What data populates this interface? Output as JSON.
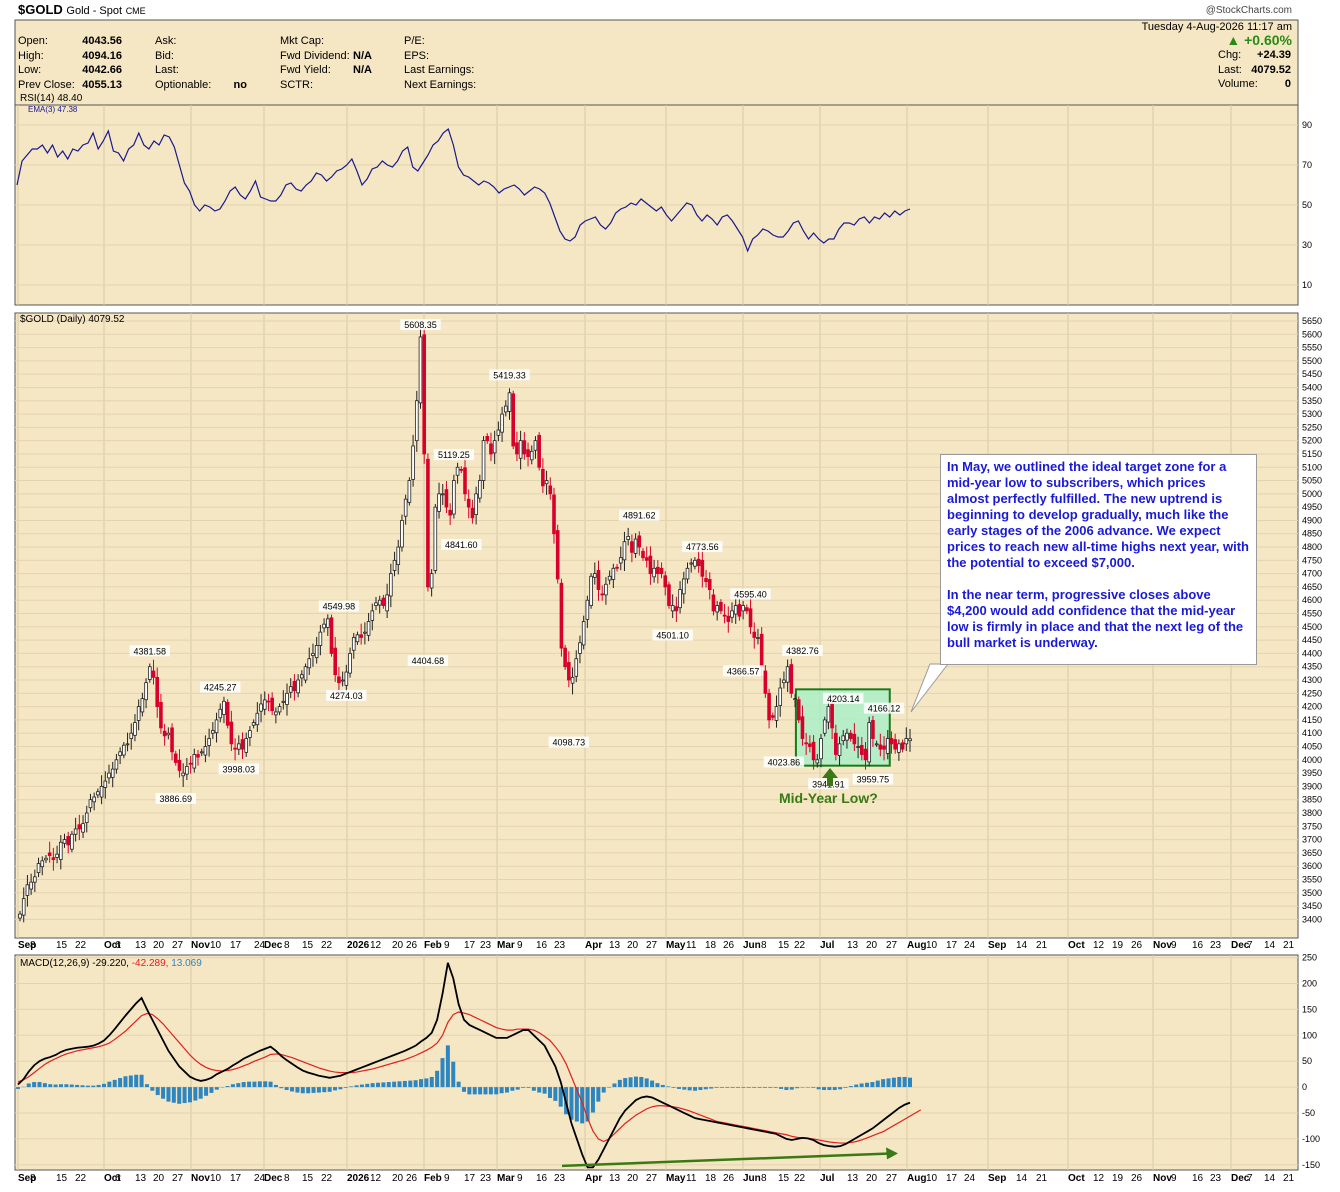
{
  "header": {
    "symbol": "$GOLD",
    "name": "Gold - Spot",
    "exchange": "CME",
    "date": "Tuesday  4-Aug-2026 11:17 am",
    "watermark": "@StockCharts.com",
    "pct_change": "▲ +0.60%",
    "fields_left": [
      {
        "label": "Open:",
        "value": "4043.56"
      },
      {
        "label": "High:",
        "value": "4094.16"
      },
      {
        "label": "Low:",
        "value": "4042.66"
      },
      {
        "label": "Prev Close:",
        "value": "4055.13"
      }
    ],
    "fields_mid1": [
      {
        "label": "Ask:",
        "value": ""
      },
      {
        "label": "Bid:",
        "value": ""
      },
      {
        "label": "Last:",
        "value": ""
      },
      {
        "label": "Optionable:",
        "value": "no"
      }
    ],
    "fields_mid2": [
      {
        "label": "Mkt Cap:",
        "value": ""
      },
      {
        "label": "Fwd Dividend:",
        "value": "N/A"
      },
      {
        "label": "Fwd Yield:",
        "value": "N/A"
      },
      {
        "label": "SCTR:",
        "value": ""
      }
    ],
    "fields_mid3": [
      {
        "label": "P/E:",
        "value": ""
      },
      {
        "label": "EPS:",
        "value": ""
      },
      {
        "label": "Last Earnings:",
        "value": ""
      },
      {
        "label": "Next Earnings:",
        "value": ""
      }
    ],
    "fields_right": [
      {
        "label": "Chg:",
        "value": "+24.39"
      },
      {
        "label": "Last:",
        "value": "4079.52"
      },
      {
        "label": "Volume:",
        "value": "0"
      }
    ]
  },
  "colors": {
    "panel_bg": "#f5e6c4",
    "up": "#222222",
    "down": "#d8002a",
    "rsi": "#1a1a8c",
    "macd": "#000000",
    "signal": "#e02020",
    "hist": "#2e86c1",
    "box_fill": "#a8f0c8",
    "box_edge": "#1a7a1a",
    "green": "#3a7a14"
  },
  "annotation": {
    "text": "In May, we outlined the ideal target zone for a mid-year low to subscribers, which prices almost perfectly fulfilled. The new uptrend is beginning to develop gradually, much like the early stages of the 2006 advance. We expect prices to reach new all-time highs next year, with the potential to exceed $7,000.\n\nIn the near term, progressive closes above $4,200 would add confidence that the mid-year low is firmly in place and that the next leg of the bull market is underway.",
    "mid_year_low": "Mid-Year Low?"
  },
  "chart_data": [
    {
      "type": "line",
      "title": "RSI(14) 48.40",
      "legend": [
        "RSI(14) 48.40",
        "EMA(3) 47.38"
      ],
      "ylim": [
        0,
        100
      ],
      "y_ticks": [
        90,
        70,
        50,
        30,
        10
      ],
      "values": [
        60,
        72,
        75,
        78,
        78,
        80,
        76,
        80,
        74,
        77,
        73,
        78,
        77,
        80,
        81,
        86,
        78,
        82,
        87,
        77,
        76,
        72,
        78,
        80,
        86,
        80,
        78,
        82,
        80,
        85,
        84,
        79,
        70,
        61,
        57,
        50,
        47,
        50,
        49,
        47,
        48,
        52,
        57,
        59,
        55,
        53,
        57,
        62,
        54,
        53,
        52,
        52,
        55,
        60,
        61,
        58,
        57,
        60,
        62,
        66,
        65,
        62,
        64,
        67,
        68,
        70,
        73,
        67,
        60,
        63,
        68,
        69,
        72,
        70,
        69,
        72,
        77,
        79,
        69,
        67,
        71,
        75,
        80,
        82,
        86,
        88,
        80,
        69,
        65,
        64,
        62,
        60,
        62,
        61,
        59,
        56,
        58,
        59,
        60,
        58,
        55,
        57,
        59,
        58,
        56,
        51,
        44,
        37,
        33,
        32,
        34,
        40,
        42,
        43,
        44,
        40,
        38,
        41,
        46,
        48,
        49,
        51,
        50,
        53,
        51,
        49,
        47,
        49,
        45,
        42,
        45,
        48,
        51,
        50,
        45,
        42,
        45,
        43,
        40,
        44,
        45,
        42,
        38,
        34,
        27,
        33,
        35,
        38,
        37,
        35,
        34,
        34,
        37,
        41,
        42,
        37,
        33,
        36,
        33,
        31,
        33,
        33,
        38,
        41,
        41,
        40,
        43,
        44,
        41,
        44,
        43,
        46,
        44,
        47,
        45,
        47,
        48
      ]
    },
    {
      "type": "candlestick",
      "title": "$GOLD (Daily) 4079.52",
      "ylim": [
        3330,
        5680
      ],
      "y_ticks": [
        3400,
        3450,
        3500,
        3550,
        3600,
        3650,
        3700,
        3750,
        3800,
        3850,
        3900,
        3950,
        4000,
        4050,
        4100,
        4150,
        4200,
        4250,
        4300,
        4350,
        4400,
        4450,
        4500,
        4550,
        4600,
        4650,
        4700,
        4750,
        4800,
        4850,
        4900,
        4950,
        5000,
        5050,
        5100,
        5150,
        5200,
        5250,
        5300,
        5350,
        5400,
        5450,
        5500,
        5550,
        5600,
        5650
      ],
      "x_ticks": [
        "Sep",
        "8",
        "15",
        "22",
        "Oct",
        "6",
        "13",
        "20",
        "27",
        "Nov",
        "10",
        "17",
        "24",
        "Dec",
        "8",
        "15",
        "22",
        "2026",
        "12",
        "20",
        "26",
        "Feb",
        "9",
        "17",
        "23",
        "Mar",
        "9",
        "16",
        "23",
        "Apr",
        "13",
        "20",
        "27",
        "May",
        "11",
        "18",
        "26",
        "Jun",
        "8",
        "15",
        "22",
        "Jul",
        "13",
        "20",
        "27",
        "Aug",
        "10",
        "17",
        "24",
        "Sep",
        "14",
        "21",
        "Oct",
        "12",
        "19",
        "26",
        "Nov",
        "9",
        "16",
        "23",
        "Dec",
        "7",
        "14",
        "21"
      ],
      "closes": [
        3420,
        3478,
        3530,
        3540,
        3560,
        3610,
        3620,
        3630,
        3640,
        3625,
        3645,
        3690,
        3700,
        3680,
        3720,
        3740,
        3740,
        3760,
        3800,
        3850,
        3860,
        3880,
        3900,
        3920,
        3950,
        3965,
        4000,
        4030,
        4055,
        4060,
        4100,
        4140,
        4200,
        4230,
        4290,
        4350,
        4310,
        4200,
        4120,
        4090,
        4100,
        4030,
        3990,
        3960,
        3950,
        3975,
        3985,
        4020,
        4010,
        4030,
        4050,
        4080,
        4110,
        4150,
        4190,
        4220,
        4130,
        4060,
        4040,
        4060,
        4040,
        4080,
        4110,
        4140,
        4175,
        4210,
        4225,
        4220,
        4185,
        4180,
        4200,
        4220,
        4250,
        4275,
        4260,
        4300,
        4320,
        4350,
        4380,
        4400,
        4430,
        4480,
        4510,
        4530,
        4400,
        4320,
        4290,
        4300,
        4330,
        4400,
        4460,
        4470,
        4460,
        4480,
        4520,
        4560,
        4590,
        4600,
        4580,
        4620,
        4700,
        4750,
        4800,
        4900,
        4980,
        5050,
        5180,
        5350,
        5590,
        5150,
        4650,
        4700,
        4950,
        5000,
        5000,
        4950,
        4920,
        5050,
        5100,
        5090,
        5000,
        4950,
        4910,
        5000,
        5050,
        5200,
        5200,
        5150,
        5200,
        5240,
        5300,
        5330,
        5380,
        5180,
        5150,
        5200,
        5150,
        5140,
        5160,
        5200,
        5100,
        5030,
        5050,
        5000,
        4850,
        4680,
        4420,
        4350,
        4300,
        4310,
        4380,
        4440,
        4520,
        4600,
        4690,
        4700,
        4640,
        4620,
        4660,
        4690,
        4720,
        4720,
        4760,
        4820,
        4840,
        4780,
        4830,
        4800,
        4760,
        4750,
        4700,
        4720,
        4700,
        4700,
        4650,
        4580,
        4580,
        4560,
        4640,
        4680,
        4720,
        4740,
        4750,
        4730,
        4690,
        4670,
        4640,
        4560,
        4580,
        4560,
        4540,
        4520,
        4560,
        4580,
        4540,
        4580,
        4560,
        4500,
        4460,
        4460,
        4350,
        4250,
        4150,
        4160,
        4200,
        4270,
        4300,
        4350,
        4250,
        4230,
        4150,
        4080,
        4060,
        4050,
        4000,
        4000,
        4080,
        4150,
        4200,
        4120,
        4020,
        4060,
        4090,
        4100,
        4080,
        4060,
        4050,
        4020,
        4000,
        4140,
        4080,
        4060,
        4040,
        4040,
        4080,
        4060,
        4040,
        4060,
        4040,
        4080,
        4079
      ]
    },
    {
      "type": "line",
      "title": "MACD(12,26,9) -29.220, -42.289, 13.069",
      "legend": [
        "MACD(12,26,9)",
        "-29.220,",
        "-42.289,",
        "13.069"
      ],
      "ylim": [
        -160,
        255
      ],
      "y_ticks": [
        250,
        200,
        150,
        100,
        50,
        0,
        -50,
        -100,
        -150
      ],
      "macd": [
        5,
        15,
        30,
        42,
        50,
        55,
        58,
        62,
        68,
        72,
        74,
        76,
        77,
        78,
        80,
        84,
        90,
        100,
        112,
        125,
        138,
        150,
        162,
        172,
        150,
        130,
        110,
        90,
        70,
        55,
        40,
        30,
        20,
        15,
        12,
        14,
        18,
        25,
        30,
        35,
        42,
        48,
        55,
        60,
        65,
        70,
        74,
        78,
        70,
        60,
        52,
        45,
        38,
        32,
        28,
        25,
        22,
        20,
        18,
        20,
        22,
        26,
        30,
        34,
        38,
        42,
        46,
        50,
        54,
        58,
        62,
        66,
        70,
        75,
        80,
        88,
        95,
        105,
        130,
        180,
        240,
        210,
        160,
        130,
        120,
        115,
        110,
        105,
        100,
        95,
        95,
        95,
        100,
        105,
        110,
        110,
        100,
        90,
        80,
        60,
        40,
        10,
        -30,
        -70,
        -100,
        -130,
        -155,
        -155,
        -140,
        -120,
        -100,
        -80,
        -60,
        -45,
        -35,
        -25,
        -20,
        -18,
        -20,
        -25,
        -30,
        -35,
        -40,
        -45,
        -50,
        -55,
        -60,
        -62,
        -64,
        -66,
        -68,
        -70,
        -72,
        -74,
        -76,
        -78,
        -80,
        -82,
        -84,
        -86,
        -88,
        -90,
        -95,
        -100,
        -102,
        -100,
        -98,
        -99,
        -102,
        -108,
        -112,
        -114,
        -115,
        -114,
        -110,
        -104,
        -98,
        -92,
        -86,
        -80,
        -72,
        -64,
        -56,
        -48,
        -40,
        -34,
        -30
      ],
      "signal": [
        10,
        14,
        20,
        28,
        36,
        44,
        50,
        55,
        60,
        64,
        67,
        70,
        72,
        74,
        76,
        78,
        81,
        85,
        92,
        100,
        108,
        118,
        128,
        138,
        142,
        140,
        132,
        122,
        110,
        98,
        86,
        74,
        62,
        52,
        44,
        38,
        34,
        32,
        31,
        32,
        34,
        37,
        41,
        45,
        50,
        54,
        58,
        63,
        64,
        63,
        60,
        57,
        53,
        49,
        45,
        41,
        37,
        34,
        31,
        29,
        28,
        28,
        28,
        29,
        31,
        33,
        35,
        38,
        41,
        44,
        47,
        50,
        53,
        57,
        61,
        66,
        71,
        77,
        85,
        100,
        125,
        140,
        145,
        143,
        140,
        135,
        130,
        125,
        120,
        115,
        112,
        110,
        110,
        112,
        112,
        112,
        110,
        105,
        98,
        90,
        78,
        64,
        45,
        20,
        -5,
        -30,
        -60,
        -85,
        -100,
        -105,
        -100,
        -90,
        -80,
        -70,
        -62,
        -54,
        -48,
        -42,
        -38,
        -36,
        -36,
        -37,
        -38,
        -40,
        -43,
        -46,
        -50,
        -54,
        -58,
        -62,
        -66,
        -68,
        -70,
        -72,
        -74,
        -76,
        -78,
        -80,
        -82,
        -84,
        -86,
        -88,
        -90,
        -92,
        -95,
        -97,
        -98,
        -99,
        -100,
        -102,
        -104,
        -106,
        -107,
        -108,
        -108,
        -107,
        -105,
        -102,
        -98,
        -94,
        -90,
        -86,
        -80,
        -74,
        -68,
        -62,
        -56,
        -50,
        -44
      ]
    }
  ],
  "price_labels": [
    {
      "text": "5608.35",
      "i": 108
    },
    {
      "text": "5419.33",
      "i": 132
    },
    {
      "text": "5119.25",
      "i": 117
    },
    {
      "text": "4891.62",
      "i": 167
    },
    {
      "text": "4773.56",
      "i": 184
    },
    {
      "text": "4595.40",
      "i": 197
    },
    {
      "text": "4549.98",
      "i": 86
    },
    {
      "text": "4381.58",
      "i": 35
    },
    {
      "text": "4245.27",
      "i": 54
    },
    {
      "text": "4382.76",
      "i": 211
    },
    {
      "text": "4203.14",
      "i": 222
    },
    {
      "text": "4166.12",
      "i": 233
    },
    {
      "text": "4404.68",
      "i": 110
    },
    {
      "text": "4841.60",
      "i": 119
    },
    {
      "text": "4274.03",
      "i": 88
    },
    {
      "text": "4098.73",
      "i": 148
    },
    {
      "text": "4501.10",
      "i": 176
    },
    {
      "text": "4366.57",
      "i": 195
    },
    {
      "text": "3998.03",
      "i": 59
    },
    {
      "text": "3886.69",
      "i": 42
    },
    {
      "text": "4023.86",
      "i": 206
    },
    {
      "text": "3941.91",
      "i": 218
    },
    {
      "text": "3959.75",
      "i": 230
    }
  ]
}
